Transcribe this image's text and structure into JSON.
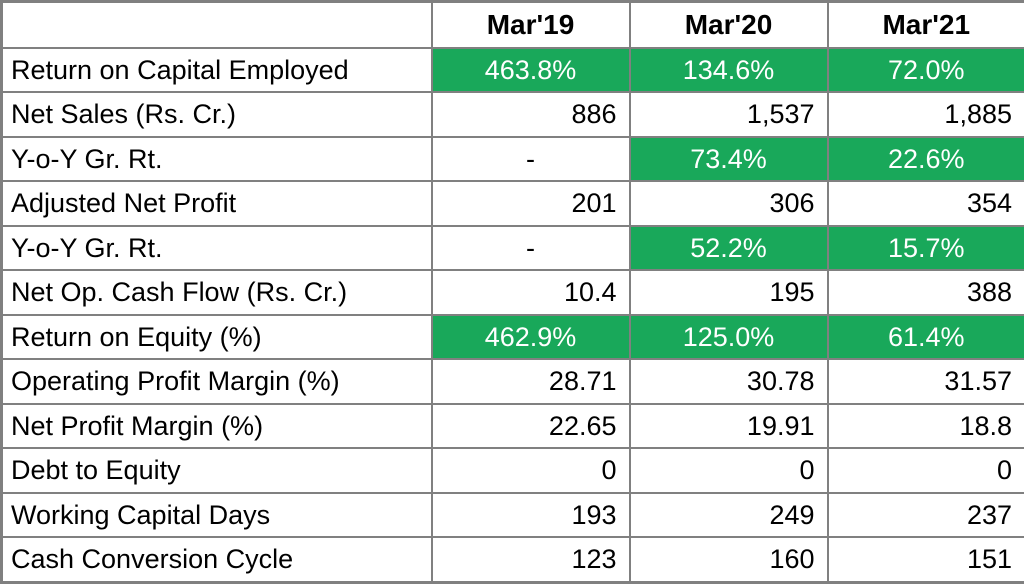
{
  "meta": {
    "highlight_green": "#19a85a",
    "grid_color": "#808080",
    "text_on_green": "#ffffff",
    "text_color": "#000000"
  },
  "table": {
    "header": {
      "col0": "",
      "col1": "Mar'19",
      "col2": "Mar'20",
      "col3": "Mar'21"
    },
    "rows": [
      {
        "label": "Return on Capital Employed",
        "v1": "463.8%",
        "v2": "134.6%",
        "v3": "72.0%"
      },
      {
        "label": "Net Sales (Rs. Cr.)",
        "v1": "886",
        "v2": "1,537",
        "v3": "1,885"
      },
      {
        "label": "Y-o-Y Gr. Rt.",
        "v1": "-",
        "v2": "73.4%",
        "v3": "22.6%"
      },
      {
        "label": "Adjusted Net Profit",
        "v1": "201",
        "v2": "306",
        "v3": "354"
      },
      {
        "label": "Y-o-Y Gr. Rt.",
        "v1": "-",
        "v2": "52.2%",
        "v3": "15.7%"
      },
      {
        "label": "Net Op. Cash Flow (Rs. Cr.)",
        "v1": "10.4",
        "v2": "195",
        "v3": "388"
      },
      {
        "label": "Return on Equity (%)",
        "v1": "462.9%",
        "v2": "125.0%",
        "v3": "61.4%"
      },
      {
        "label": "Operating Profit Margin (%)",
        "v1": "28.71",
        "v2": "30.78",
        "v3": "31.57"
      },
      {
        "label": "Net Profit Margin (%)",
        "v1": "22.65",
        "v2": "19.91",
        "v3": "18.8"
      },
      {
        "label": "Debt to Equity",
        "v1": "0",
        "v2": "0",
        "v3": "0"
      },
      {
        "label": "Working Capital Days",
        "v1": "193",
        "v2": "249",
        "v3": "237"
      },
      {
        "label": "Cash Conversion Cycle",
        "v1": "123",
        "v2": "160",
        "v3": "151"
      }
    ]
  }
}
